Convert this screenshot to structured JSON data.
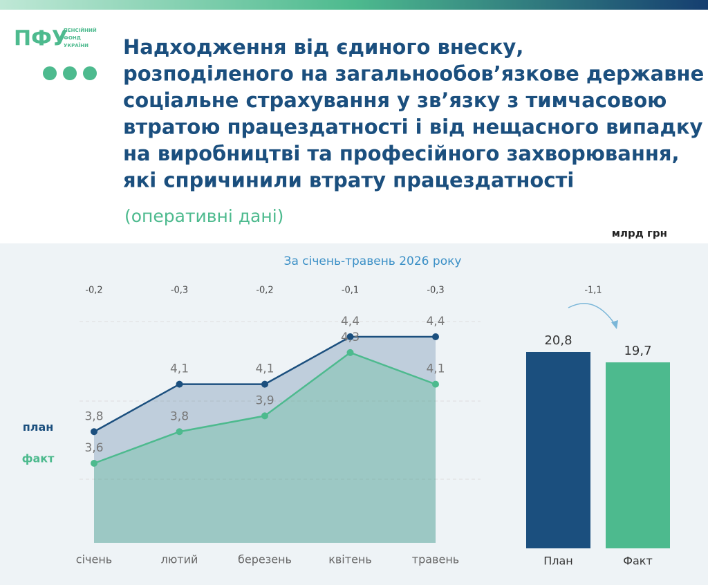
{
  "header": {
    "logo": "ПФУ",
    "logo_caption": [
      "ПЕНСІЙНИЙ",
      "ФОНД",
      "УКРАЇНИ"
    ],
    "title_lines": [
      "Надходження від єдиного внеску,",
      "розподіленого на загальнообов’язкове державне",
      "соціальне страхування у зв’язку з тимчасовою",
      "втратою працездатності і від нещасного випадку",
      "на виробництві та професійного захворювання,",
      "які спричинили втрату працездатності"
    ],
    "subtitle": "(оперативні дані)",
    "unit": "млрд грн"
  },
  "chart_data": [
    {
      "type": "line",
      "title": "За січень-травень 2026 року",
      "categories": [
        "січень",
        "лютий",
        "березень",
        "квітень",
        "травень"
      ],
      "series": [
        {
          "name": "план",
          "color": "#1b4f7e",
          "values": [
            3.8,
            4.1,
            4.1,
            4.4,
            4.4
          ],
          "value_labels": [
            "3,8",
            "4,1",
            "4,1",
            "4,4",
            "4,4"
          ]
        },
        {
          "name": "факт",
          "color": "#4dba8e",
          "values": [
            3.6,
            3.8,
            3.9,
            4.3,
            4.1
          ],
          "value_labels": [
            "3,6",
            "3,8",
            "3,9",
            "4,3",
            "4,1"
          ]
        }
      ],
      "differences": {
        "values": [
          -0.2,
          -0.3,
          -0.2,
          -0.1,
          -0.3
        ],
        "value_labels": [
          "-0,2",
          "-0,3",
          "-0,2",
          "-0,1",
          "-0,3"
        ]
      }
    },
    {
      "type": "bar",
      "categories": [
        "План",
        "Факт"
      ],
      "values": [
        20.8,
        19.7
      ],
      "value_labels": [
        "20,8",
        "19,7"
      ],
      "colors": [
        "#1b4f7e",
        "#4dba8e"
      ],
      "difference": {
        "value": -1.1,
        "label": "-1,1"
      }
    }
  ]
}
